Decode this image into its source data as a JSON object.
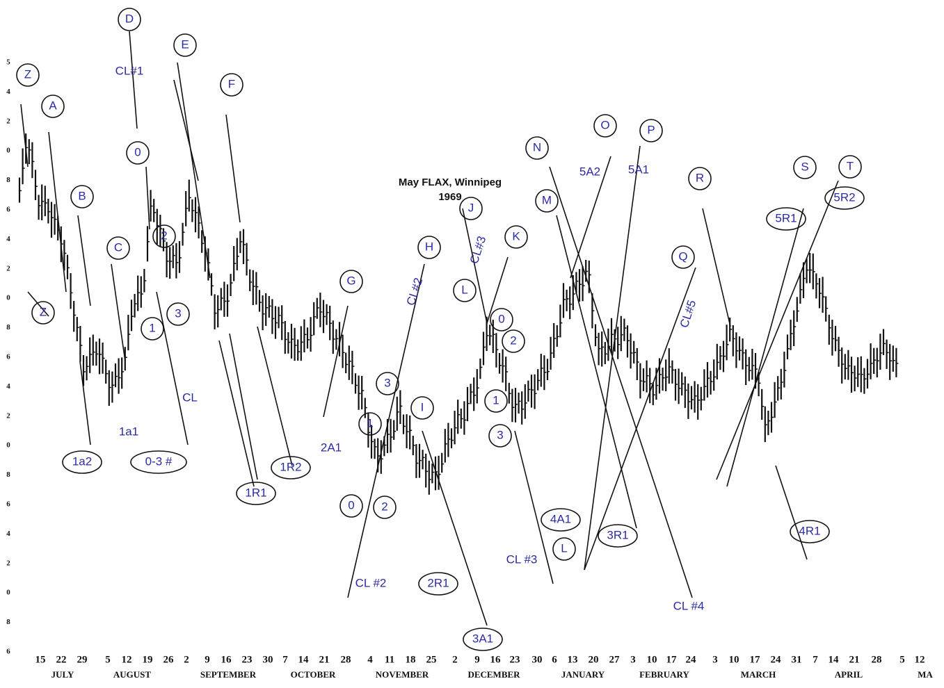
{
  "title": "May FLAX, Winnipeg",
  "subtitle": "1969",
  "y_axis_labels": [
    "5",
    "4",
    "2",
    "0",
    "8",
    "6",
    "4",
    "2",
    "0",
    "8",
    "6",
    "4",
    "2",
    "0",
    "8",
    "6",
    "4",
    "2",
    "0",
    "8",
    "6"
  ],
  "x_axis": {
    "days": [
      "15",
      "22",
      "29",
      "5",
      "12",
      "19",
      "26",
      "2",
      "9",
      "16",
      "23",
      "30",
      "7",
      "14",
      "21",
      "28",
      "4",
      "11",
      "18",
      "25",
      "2",
      "9",
      "16",
      "23",
      "30",
      "6",
      "13",
      "20",
      "27",
      "3",
      "10",
      "17",
      "24",
      "3",
      "10",
      "17",
      "24",
      "31",
      "7",
      "14",
      "21",
      "28",
      "5",
      "12"
    ],
    "months": [
      "JULY",
      "AUGUST",
      "SEPTEMBER",
      "OCTOBER",
      "NOVEMBER",
      "DECEMBER",
      "JANUARY",
      "FEBRUARY",
      "MARCH",
      "APRIL",
      "MA"
    ]
  },
  "annotations": [
    "Z",
    "A",
    "B",
    "C",
    "D",
    "CL#1",
    "0",
    "2",
    "1",
    "3",
    "E",
    "F",
    "Z",
    "1a2",
    "1a1",
    "0-3 #",
    "CL",
    "1R1",
    "1R2",
    "G",
    "2A1",
    "0",
    "1",
    "2",
    "3",
    "CL #2",
    "H",
    "CL#2",
    "I",
    "2R1",
    "3A1",
    "J",
    "CL#3",
    "K",
    "L",
    "0",
    "2",
    "1",
    "3",
    "4A1",
    "L",
    "CL #3",
    "N",
    "M",
    "O",
    "P",
    "5A2",
    "5A1",
    "3R1",
    "R",
    "Q",
    "CL#5",
    "CL #4",
    "S",
    "T",
    "5R1",
    "5R2",
    "4R1"
  ]
}
